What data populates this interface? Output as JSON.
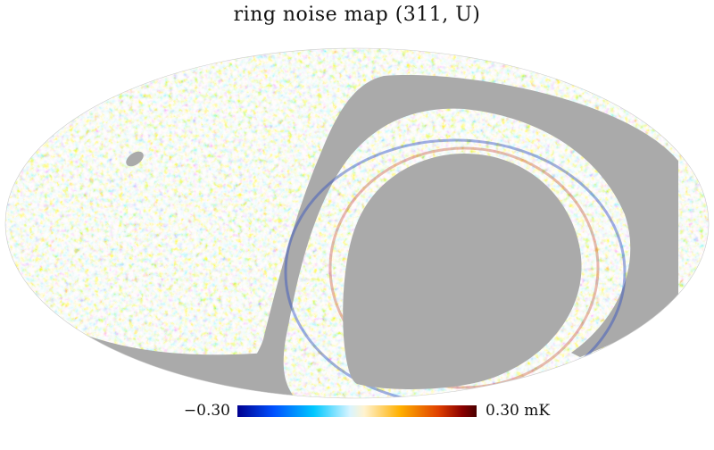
{
  "title": "ring noise map (311, U)",
  "map": {
    "projection": "mollweide",
    "masked_color": "#aaaaaa",
    "regions": [
      "small-hole",
      "outer-band-mask",
      "inner-disk-mask"
    ]
  },
  "colorbar": {
    "min_label": "−0.30",
    "max_label": "0.30 mK",
    "min_value": -0.3,
    "max_value": 0.3,
    "unit": "mK",
    "colors": [
      "#00008f",
      "#0050ff",
      "#00c8ff",
      "#d8f4ff",
      "#fff3d0",
      "#ffb000",
      "#e04000",
      "#8a0000",
      "#4a0000"
    ]
  }
}
